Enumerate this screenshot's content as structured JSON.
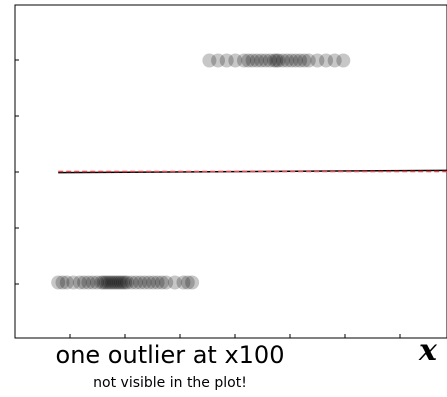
{
  "chart_data": {
    "type": "scatter",
    "xlabel": "x",
    "xlim": [
      0,
      10
    ],
    "ylim": [
      -1.5,
      1.5
    ],
    "grid": false,
    "series": [
      {
        "values_y": -1,
        "x": [
          1.0,
          1.1,
          1.2,
          1.35,
          1.5,
          1.6,
          1.7,
          1.8,
          1.9,
          2.0,
          2.05,
          2.1,
          2.15,
          2.2,
          2.25,
          2.3,
          2.35,
          2.4,
          2.45,
          2.5,
          2.55,
          2.6,
          2.7,
          2.8,
          2.9,
          3.0,
          3.1,
          3.2,
          3.3,
          3.4,
          3.5,
          3.7,
          3.9,
          4.0,
          4.1
        ]
      },
      {
        "values_y": 1,
        "x": [
          4.5,
          4.7,
          4.9,
          5.1,
          5.3,
          5.4,
          5.5,
          5.6,
          5.7,
          5.8,
          5.9,
          6.0,
          6.05,
          6.1,
          6.2,
          6.3,
          6.4,
          6.5,
          6.6,
          6.7,
          6.8,
          7.0,
          7.2,
          7.4,
          7.6
        ]
      }
    ],
    "fit_lines": [
      {
        "style": "solid",
        "color": "#000000",
        "x": [
          1.0,
          10.0
        ],
        "y": [
          -0.01,
          0.01
        ]
      },
      {
        "style": "dashed",
        "color": "#e8474a",
        "x": [
          1.0,
          10.0
        ],
        "y": [
          0.0,
          0.0
        ]
      }
    ],
    "annotations": [
      "one outlier at x100",
      "not visible in the plot!"
    ]
  }
}
